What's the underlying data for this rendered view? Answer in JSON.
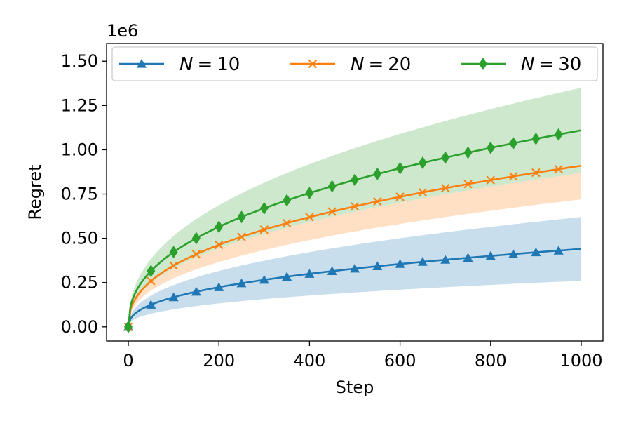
{
  "chart_data": {
    "type": "line",
    "title": "",
    "xlabel": "Step",
    "ylabel": "Regret",
    "y_offset_label": "1e6",
    "xlim": [
      -48,
      1048
    ],
    "ylim": [
      -0.08,
      1.6
    ],
    "x_ticks": [
      0,
      200,
      400,
      600,
      800,
      1000
    ],
    "x_tick_labels": [
      "0",
      "200",
      "400",
      "600",
      "800",
      "1000"
    ],
    "y_ticks": [
      0,
      0.25,
      0.5,
      0.75,
      1.0,
      1.25,
      1.5
    ],
    "y_tick_labels": [
      "0.00",
      "0.25",
      "0.50",
      "0.75",
      "1.00",
      "1.25",
      "1.50"
    ],
    "grid": false,
    "legend_position": "top",
    "legend_columns": 3,
    "x_max": 1000,
    "marker_x": [
      0,
      50,
      100,
      150,
      200,
      250,
      300,
      350,
      400,
      450,
      500,
      550,
      600,
      650,
      700,
      750,
      800,
      850,
      900,
      950
    ],
    "series": [
      {
        "name": "N = 10",
        "legend_var": "N",
        "legend_eq": "=",
        "legend_val": "10",
        "color": "#1f77b4",
        "marker": "triangle",
        "mean_final": 0.44,
        "band_lower_final": 0.26,
        "band_upper_final": 0.62
      },
      {
        "name": "N = 20",
        "legend_var": "N",
        "legend_eq": "=",
        "legend_val": "20",
        "color": "#ff7f0e",
        "marker": "x",
        "mean_final": 0.91,
        "band_lower_final": 0.72,
        "band_upper_final": 0.87
      },
      {
        "name": "N = 30",
        "legend_var": "N",
        "legend_eq": "=",
        "legend_val": "30",
        "color": "#2ca02c",
        "marker": "diamond",
        "mean_final": 1.11,
        "band_lower_final": 0.87,
        "band_upper_final": 1.35
      }
    ]
  }
}
